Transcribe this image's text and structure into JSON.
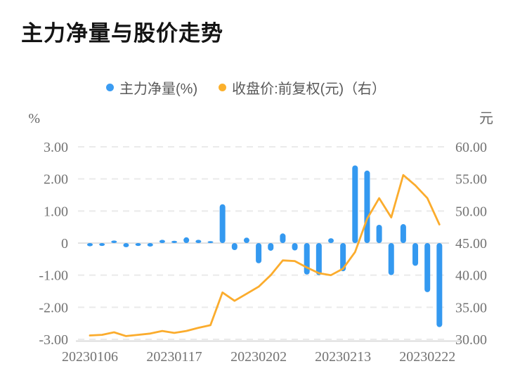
{
  "title": "主力净量与股价走势",
  "legend": [
    {
      "label": "主力净量(%)",
      "color": "#3B9CF2"
    },
    {
      "label": "收盘价:前复权(元)（右）",
      "color": "#FBB02C"
    }
  ],
  "chart_data": {
    "type": "bar",
    "title": "主力净量与股价走势",
    "grid": "dashed-horizontal",
    "legend_position": "top-center",
    "left_axis": {
      "unit": "%",
      "min": -3,
      "max": 3,
      "tick_values": [
        3,
        2,
        1,
        0,
        -1,
        -2,
        -3
      ],
      "ticks": [
        "3.00",
        "2.00",
        "1.00",
        "0",
        "-1.00",
        "-2.00",
        "-3.00"
      ]
    },
    "right_axis": {
      "unit": "元",
      "min": 30,
      "max": 60,
      "tick_values": [
        60,
        55,
        50,
        45,
        40,
        35,
        30
      ],
      "ticks": [
        "60.00",
        "55.00",
        "50.00",
        "45.00",
        "40.00",
        "35.00",
        "30.00"
      ]
    },
    "x_axis": {
      "labels": [
        "20230106",
        "20230117",
        "20230202",
        "20230213",
        "20230222"
      ],
      "label_bar_indices": [
        0,
        7,
        14,
        21,
        28
      ]
    },
    "series": [
      {
        "name": "主力净量(%)",
        "type": "bar",
        "axis": "left",
        "color": "#3499F0",
        "values": [
          -0.1,
          -0.09,
          0.08,
          -0.13,
          -0.09,
          -0.11,
          0.1,
          0.07,
          0.18,
          0.1,
          0.06,
          1.21,
          -0.22,
          0.17,
          -0.63,
          -0.24,
          0.3,
          -0.23,
          -0.98,
          -1.0,
          0.15,
          -0.88,
          2.42,
          2.26,
          0.57,
          -1.0,
          0.59,
          -0.71,
          -1.53,
          -2.62
        ]
      },
      {
        "name": "收盘价:前复权(元)（右）",
        "type": "line",
        "axis": "right",
        "color": "#FBAC2D",
        "values": [
          30.6,
          30.7,
          31.1,
          30.5,
          30.7,
          30.9,
          31.3,
          31.0,
          31.3,
          31.8,
          32.2,
          37.3,
          36.0,
          37.1,
          38.2,
          40.0,
          42.3,
          42.2,
          41.2,
          40.3,
          40.0,
          41.0,
          43.6,
          48.8,
          52.0,
          49.0,
          55.6,
          54.0,
          52.0,
          47.9
        ]
      }
    ],
    "style_colors": {
      "gridline": "#eaeaea",
      "zero_line": "#e2e2e2",
      "axis_line": "#dcdcdc",
      "tick_text": "#737373",
      "unit_text": "#666666",
      "title_text": "#141414",
      "legend_text": "#595959"
    }
  }
}
